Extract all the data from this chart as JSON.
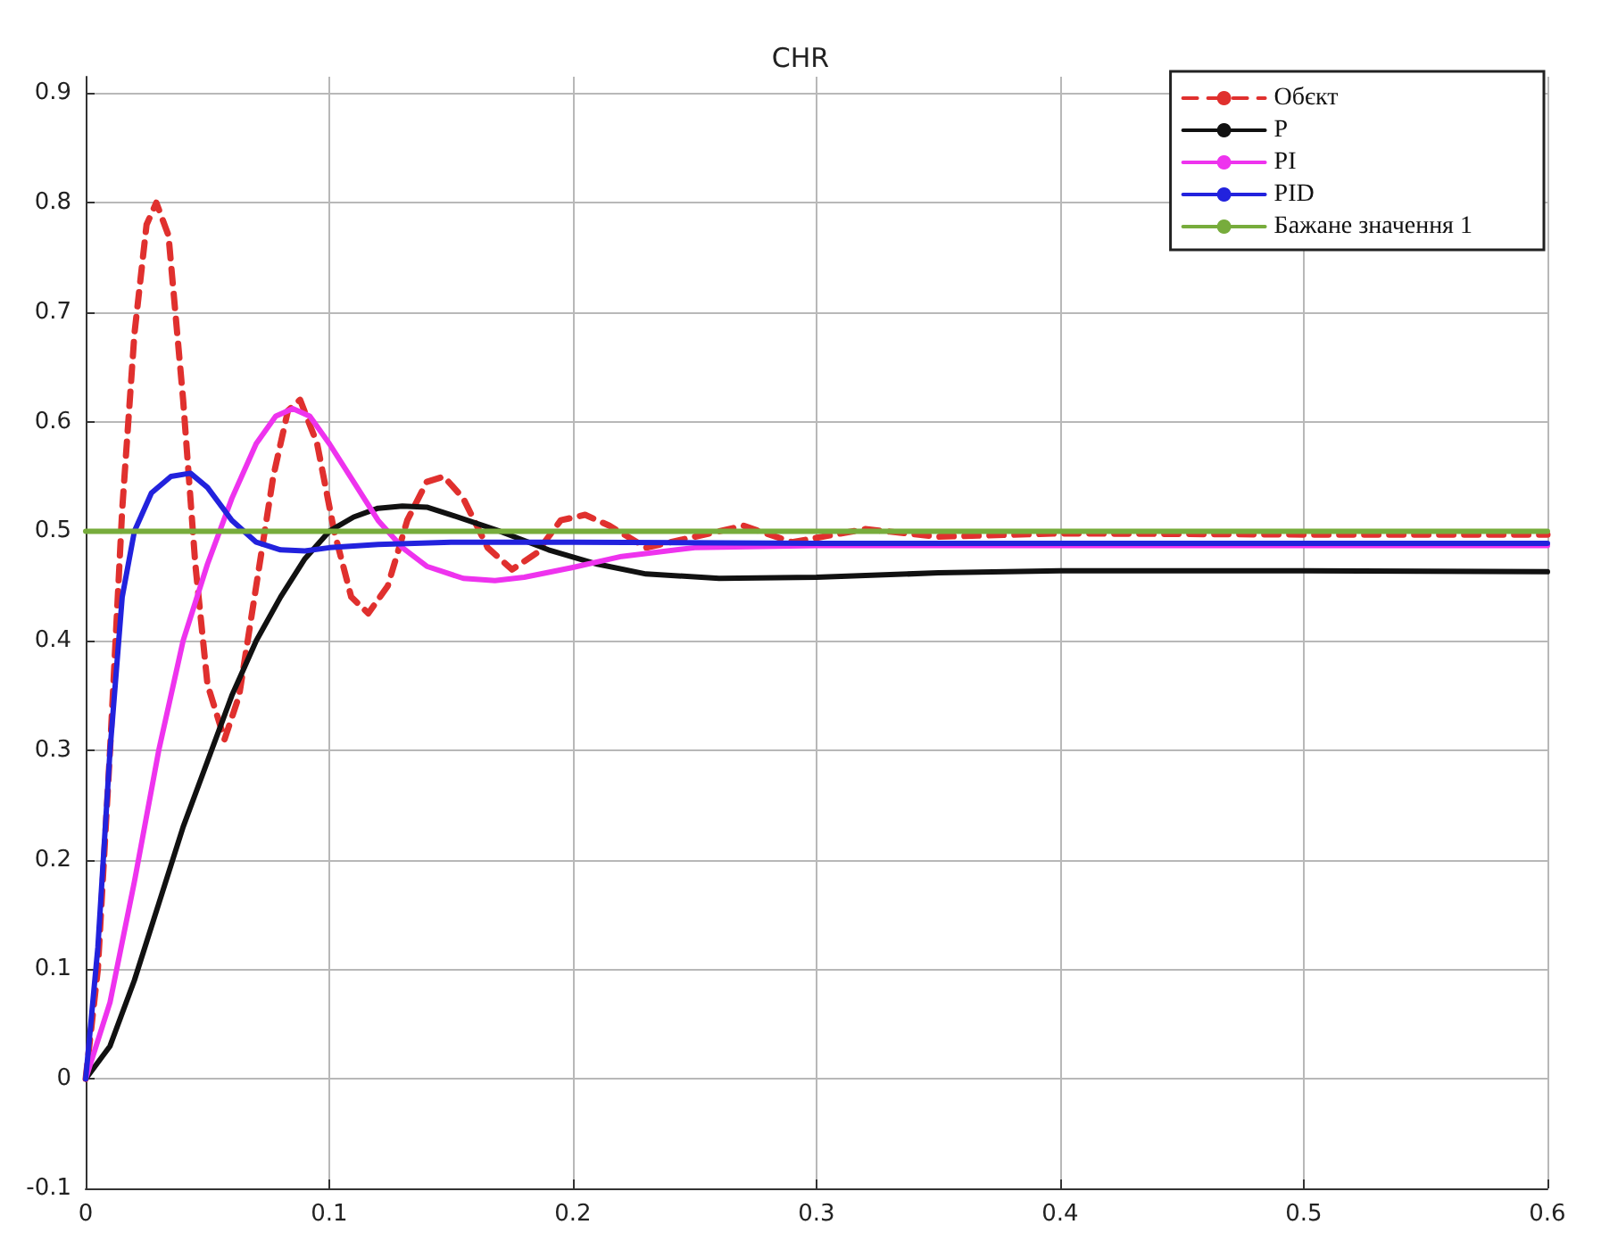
{
  "chart_data": {
    "type": "line",
    "title": "CHR",
    "xlim": [
      0,
      0.6
    ],
    "xticks": [
      0,
      0.1,
      0.2,
      0.3,
      0.4,
      0.5,
      0.6
    ],
    "ylim": [
      -0.1,
      0.915
    ],
    "yticks": [
      -0.1,
      0,
      0.1,
      0.2,
      0.3,
      0.4,
      0.5,
      0.6,
      0.7,
      0.8,
      0.9
    ],
    "grid": true,
    "legend": "top right",
    "marker": "none",
    "line_style": "solid",
    "series": [
      {
        "name": "Обєкт",
        "color": "#e0302e",
        "line_style": "dashed",
        "x": [
          0,
          0.005,
          0.01,
          0.015,
          0.02,
          0.025,
          0.029,
          0.034,
          0.04,
          0.045,
          0.05,
          0.057,
          0.063,
          0.07,
          0.077,
          0.083,
          0.088,
          0.095,
          0.102,
          0.109,
          0.116,
          0.124,
          0.132,
          0.14,
          0.147,
          0.155,
          0.165,
          0.175,
          0.185,
          0.195,
          0.205,
          0.215,
          0.23,
          0.25,
          0.27,
          0.29,
          0.32,
          0.35,
          0.4,
          0.5,
          0.6
        ],
        "values": [
          0,
          0.1,
          0.3,
          0.52,
          0.68,
          0.78,
          0.8,
          0.77,
          0.62,
          0.47,
          0.36,
          0.31,
          0.35,
          0.45,
          0.55,
          0.61,
          0.62,
          0.58,
          0.5,
          0.44,
          0.425,
          0.45,
          0.51,
          0.545,
          0.55,
          0.53,
          0.485,
          0.465,
          0.48,
          0.51,
          0.515,
          0.505,
          0.485,
          0.495,
          0.505,
          0.49,
          0.502,
          0.495,
          0.498,
          0.497,
          0.497
        ]
      },
      {
        "name": "P",
        "color": "#111111",
        "x": [
          0,
          0.01,
          0.02,
          0.03,
          0.04,
          0.05,
          0.06,
          0.07,
          0.08,
          0.09,
          0.1,
          0.11,
          0.12,
          0.13,
          0.14,
          0.15,
          0.17,
          0.19,
          0.21,
          0.23,
          0.26,
          0.3,
          0.35,
          0.4,
          0.5,
          0.6
        ],
        "values": [
          0,
          0.03,
          0.09,
          0.16,
          0.23,
          0.29,
          0.35,
          0.4,
          0.44,
          0.475,
          0.5,
          0.513,
          0.521,
          0.523,
          0.522,
          0.515,
          0.5,
          0.483,
          0.47,
          0.461,
          0.457,
          0.458,
          0.462,
          0.464,
          0.464,
          0.463
        ]
      },
      {
        "name": "PI",
        "color": "#ee33ee",
        "x": [
          0,
          0.01,
          0.02,
          0.03,
          0.04,
          0.05,
          0.06,
          0.07,
          0.078,
          0.085,
          0.092,
          0.1,
          0.11,
          0.12,
          0.13,
          0.14,
          0.155,
          0.168,
          0.18,
          0.2,
          0.22,
          0.25,
          0.3,
          0.4,
          0.6
        ],
        "values": [
          0,
          0.07,
          0.18,
          0.3,
          0.4,
          0.47,
          0.53,
          0.58,
          0.605,
          0.612,
          0.605,
          0.58,
          0.545,
          0.51,
          0.485,
          0.468,
          0.457,
          0.455,
          0.458,
          0.467,
          0.477,
          0.485,
          0.487,
          0.487,
          0.487
        ]
      },
      {
        "name": "PID",
        "color": "#2222dd",
        "x": [
          0,
          0.005,
          0.01,
          0.015,
          0.02,
          0.027,
          0.035,
          0.043,
          0.05,
          0.06,
          0.07,
          0.08,
          0.09,
          0.1,
          0.12,
          0.15,
          0.2,
          0.3,
          0.4,
          0.6
        ],
        "values": [
          0,
          0.12,
          0.3,
          0.44,
          0.5,
          0.535,
          0.55,
          0.553,
          0.54,
          0.51,
          0.49,
          0.483,
          0.482,
          0.485,
          0.488,
          0.49,
          0.49,
          0.489,
          0.489,
          0.489
        ]
      },
      {
        "name": "Бажане значення 1",
        "color": "#77ac3c",
        "x": [
          0,
          0.6
        ],
        "values": [
          0.5,
          0.5
        ]
      }
    ]
  }
}
